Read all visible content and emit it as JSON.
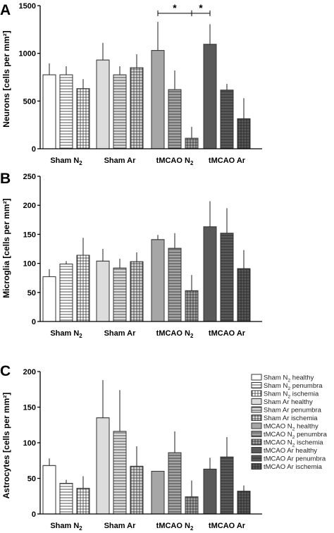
{
  "figure": {
    "legend": {
      "placement": "right of panel C",
      "entries": [
        {
          "text": "Sham N",
          "sub": "2",
          "after": " healthy",
          "style": "s_h"
        },
        {
          "text": "Sham N",
          "sub": "2",
          "after": " penumbra",
          "style": "s_p"
        },
        {
          "text": "Sham N",
          "sub": "2",
          "after": " ischemia",
          "style": "s_i"
        },
        {
          "text": "Sham Ar healthy",
          "sub": "",
          "after": "",
          "style": "a_h"
        },
        {
          "text": "Sham Ar penumbra",
          "sub": "",
          "after": "",
          "style": "a_p"
        },
        {
          "text": "Sham Ar ischemia",
          "sub": "",
          "after": "",
          "style": "a_i"
        },
        {
          "text": "tMCAO N",
          "sub": "2",
          "after": " healthy",
          "style": "tn_h"
        },
        {
          "text": "tMCAO N",
          "sub": "2",
          "after": " penumbra",
          "style": "tn_p"
        },
        {
          "text": "tMCAO N",
          "sub": "2",
          "after": " ischemia",
          "style": "tn_i"
        },
        {
          "text": "tMCAO Ar healthy",
          "sub": "",
          "after": "",
          "style": "ta_h"
        },
        {
          "text": "tMCAO Ar penumbra",
          "sub": "",
          "after": "",
          "style": "ta_p"
        },
        {
          "text": "tMCAO Ar ischemia",
          "sub": "",
          "after": "",
          "style": "ta_i"
        }
      ]
    },
    "styles": {
      "s_h": {
        "fill": "#ffffff",
        "pattern": "none"
      },
      "s_p": {
        "fill": "#ffffff",
        "pattern": "hlines"
      },
      "s_i": {
        "fill": "#ffffff",
        "pattern": "grid"
      },
      "a_h": {
        "fill": "#dcdcdc",
        "pattern": "none"
      },
      "a_p": {
        "fill": "#dcdcdc",
        "pattern": "hlines"
      },
      "a_i": {
        "fill": "#dcdcdc",
        "pattern": "grid"
      },
      "tn_h": {
        "fill": "#a6a6a6",
        "pattern": "none"
      },
      "tn_p": {
        "fill": "#a6a6a6",
        "pattern": "hlines"
      },
      "tn_i": {
        "fill": "#a6a6a6",
        "pattern": "grid"
      },
      "ta_h": {
        "fill": "#595959",
        "pattern": "none"
      },
      "ta_p": {
        "fill": "#595959",
        "pattern": "hlines"
      },
      "ta_i": {
        "fill": "#595959",
        "pattern": "grid"
      }
    }
  },
  "chart_data": [
    {
      "type": "bar",
      "panel_label": "A",
      "ylabel": "Neurons [cells per mm²]",
      "ylim": [
        0,
        1500
      ],
      "yticks": [
        0,
        500,
        1000,
        1500
      ],
      "categories": [
        {
          "label": "Sham N",
          "sub": "2"
        },
        {
          "label": "Sham Ar",
          "sub": ""
        },
        {
          "label": "tMCAO N",
          "sub": "2"
        },
        {
          "label": "tMCAO Ar",
          "sub": ""
        }
      ],
      "bars": [
        {
          "group": 0,
          "style": "s_h",
          "value": 775,
          "error": 120
        },
        {
          "group": 0,
          "style": "s_p",
          "value": 775,
          "error": 90
        },
        {
          "group": 0,
          "style": "s_i",
          "value": 630,
          "error": 100
        },
        {
          "group": 1,
          "style": "a_h",
          "value": 930,
          "error": 180
        },
        {
          "group": 1,
          "style": "a_p",
          "value": 775,
          "error": 90
        },
        {
          "group": 1,
          "style": "a_i",
          "value": 850,
          "error": 140
        },
        {
          "group": 2,
          "style": "tn_h",
          "value": 1030,
          "error": 300
        },
        {
          "group": 2,
          "style": "tn_p",
          "value": 620,
          "error": 200
        },
        {
          "group": 2,
          "style": "tn_i",
          "value": 110,
          "error": 120
        },
        {
          "group": 3,
          "style": "ta_h",
          "value": 1095,
          "error": 210
        },
        {
          "group": 3,
          "style": "ta_p",
          "value": 615,
          "error": 65
        },
        {
          "group": 3,
          "style": "ta_i",
          "value": 315,
          "error": 215
        }
      ],
      "significance": [
        {
          "from_bar": 6,
          "to_bar": 8,
          "level": 1420,
          "label": "*"
        },
        {
          "from_bar": 8,
          "to_bar": 9,
          "level": 1420,
          "label": "*"
        }
      ]
    },
    {
      "type": "bar",
      "panel_label": "B",
      "ylabel": "Microglia [cells per mm²]",
      "ylim": [
        0,
        250
      ],
      "yticks": [
        0,
        50,
        100,
        150,
        200,
        250
      ],
      "categories": [
        {
          "label": "Sham N",
          "sub": "2"
        },
        {
          "label": "Sham Ar",
          "sub": ""
        },
        {
          "label": "tMCAO N",
          "sub": "2"
        },
        {
          "label": "tMCAO Ar",
          "sub": ""
        }
      ],
      "bars": [
        {
          "group": 0,
          "style": "s_h",
          "value": 77,
          "error": 13
        },
        {
          "group": 0,
          "style": "s_p",
          "value": 99,
          "error": 5
        },
        {
          "group": 0,
          "style": "s_i",
          "value": 114,
          "error": 30
        },
        {
          "group": 1,
          "style": "a_h",
          "value": 104,
          "error": 21
        },
        {
          "group": 1,
          "style": "a_p",
          "value": 92,
          "error": 16
        },
        {
          "group": 1,
          "style": "a_i",
          "value": 103,
          "error": 16
        },
        {
          "group": 2,
          "style": "tn_h",
          "value": 141,
          "error": 8
        },
        {
          "group": 2,
          "style": "tn_p",
          "value": 126,
          "error": 26
        },
        {
          "group": 2,
          "style": "tn_i",
          "value": 53,
          "error": 27
        },
        {
          "group": 3,
          "style": "ta_h",
          "value": 163,
          "error": 44
        },
        {
          "group": 3,
          "style": "ta_p",
          "value": 152,
          "error": 43
        },
        {
          "group": 3,
          "style": "ta_i",
          "value": 91,
          "error": 32
        }
      ],
      "significance": []
    },
    {
      "type": "bar",
      "panel_label": "C",
      "ylabel": "Astrocytes [cells per mm²]",
      "ylim": [
        0,
        200
      ],
      "yticks": [
        0,
        50,
        100,
        150,
        200
      ],
      "categories": [
        {
          "label": "Sham N",
          "sub": "2"
        },
        {
          "label": "Sham Ar",
          "sub": ""
        },
        {
          "label": "tMCAO N",
          "sub": "2"
        },
        {
          "label": "tMCAO Ar",
          "sub": ""
        }
      ],
      "bars": [
        {
          "group": 0,
          "style": "s_h",
          "value": 68,
          "error": 10
        },
        {
          "group": 0,
          "style": "s_p",
          "value": 43,
          "error": 5
        },
        {
          "group": 0,
          "style": "s_i",
          "value": 36,
          "error": 17
        },
        {
          "group": 1,
          "style": "a_h",
          "value": 135,
          "error": 53
        },
        {
          "group": 1,
          "style": "a_p",
          "value": 116,
          "error": 58
        },
        {
          "group": 1,
          "style": "a_i",
          "value": 67,
          "error": 28
        },
        {
          "group": 2,
          "style": "tn_h",
          "value": 60,
          "error": 0
        },
        {
          "group": 2,
          "style": "tn_p",
          "value": 86,
          "error": 30
        },
        {
          "group": 2,
          "style": "tn_i",
          "value": 24,
          "error": 23
        },
        {
          "group": 3,
          "style": "ta_h",
          "value": 63,
          "error": 16
        },
        {
          "group": 3,
          "style": "ta_p",
          "value": 80,
          "error": 28
        },
        {
          "group": 3,
          "style": "ta_i",
          "value": 32,
          "error": 8
        }
      ],
      "significance": []
    }
  ]
}
